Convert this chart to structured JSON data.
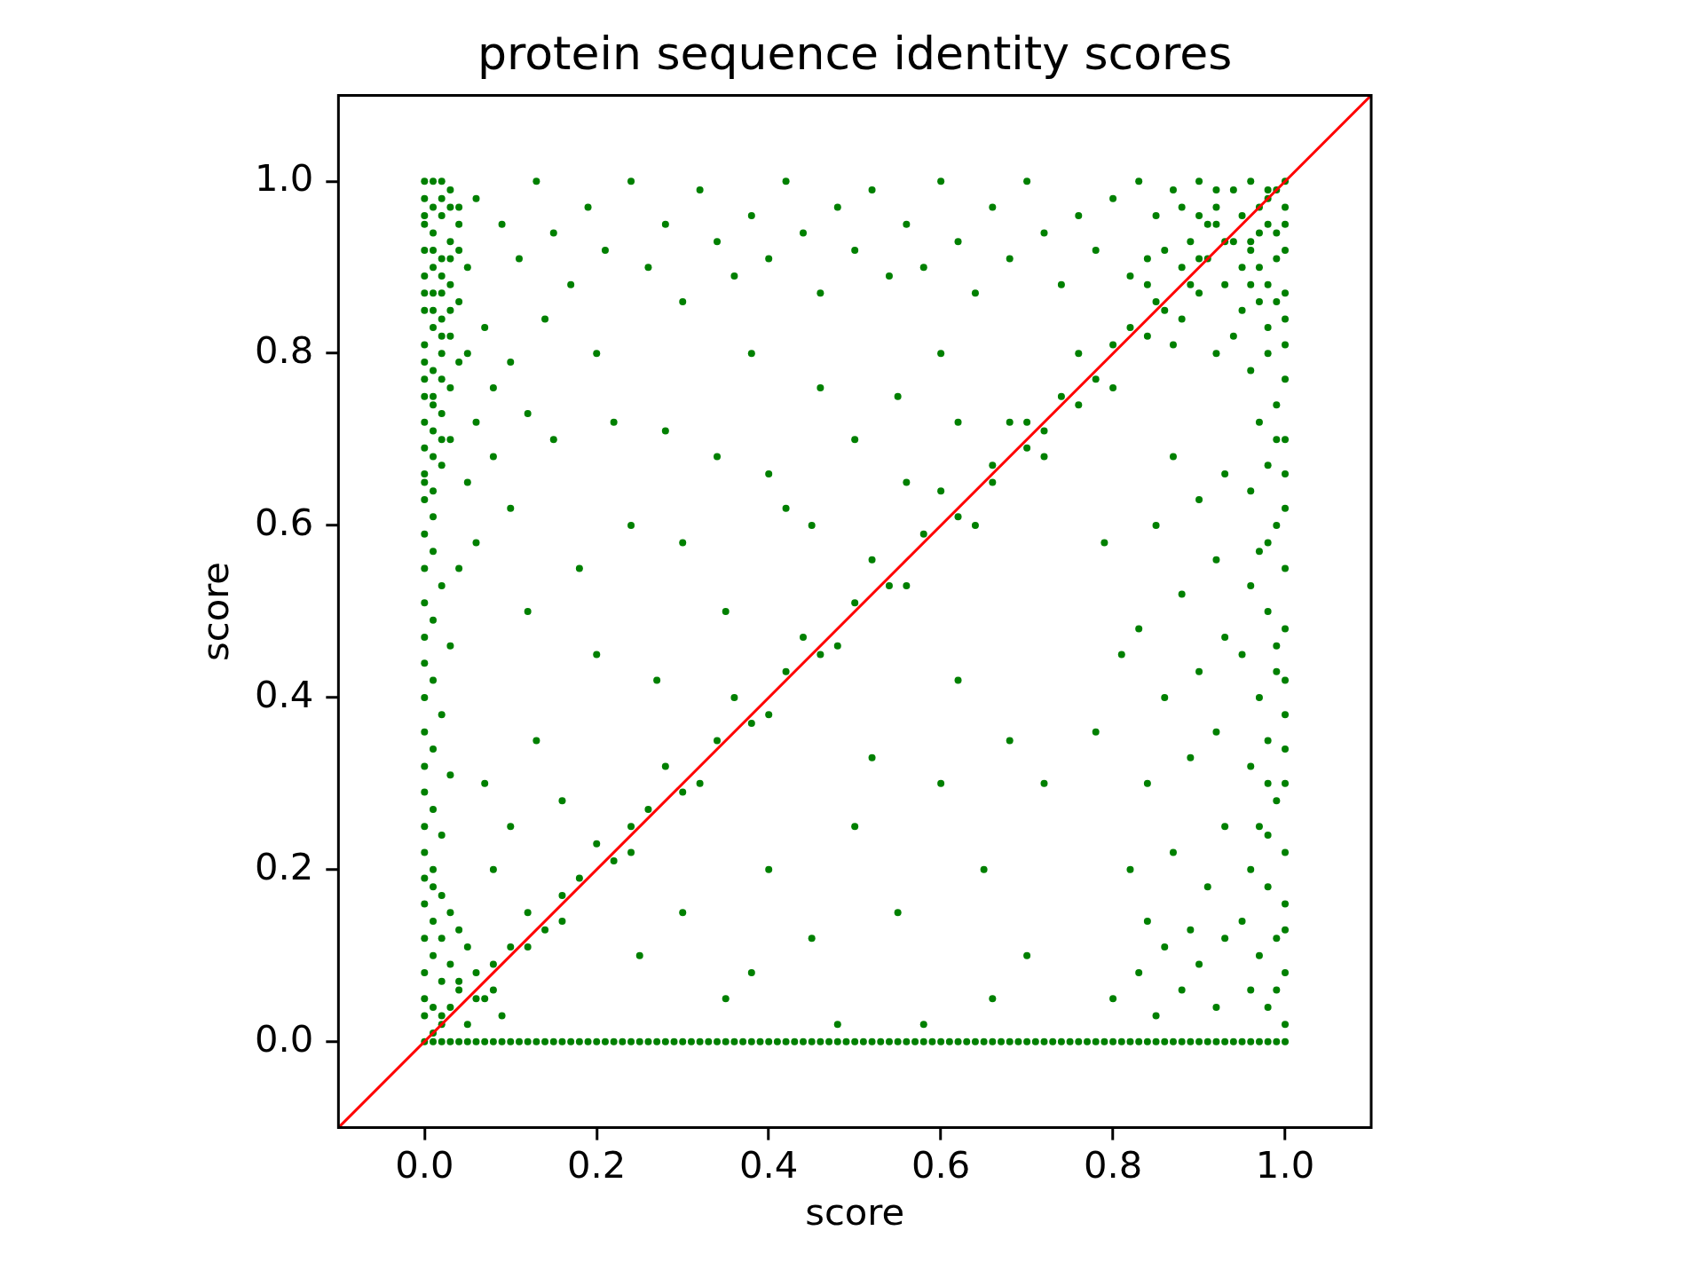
{
  "chart_data": {
    "type": "scatter",
    "title": "protein sequence identity scores",
    "xlabel": "score",
    "ylabel": "score",
    "marker": "circle",
    "xlim": [
      -0.1,
      1.1
    ],
    "ylim": [
      -0.1,
      1.1
    ],
    "xticks": [
      {
        "value": 0,
        "label": "0.0"
      },
      0.2,
      0.4,
      0.6,
      0.8,
      {
        "value": 1,
        "label": "1.0"
      }
    ],
    "yticks": [
      {
        "value": 0,
        "label": "0.0"
      },
      0.2,
      0.4,
      0.6,
      0.8,
      {
        "value": 1,
        "label": "1.0"
      }
    ],
    "series": [
      {
        "type": "scatter",
        "color": "#008000",
        "x": [
          0,
          0.01,
          0.02,
          0.03,
          0,
          0.01,
          0.02,
          0.04,
          0,
          0.01,
          0.03,
          0,
          0.02,
          0.05,
          0.01,
          0,
          0.03,
          0.01,
          0.04,
          0,
          0.02,
          0.01,
          0.03,
          0,
          0.02,
          0.04,
          0.01,
          0,
          0.03,
          0.01,
          0.02,
          0,
          0.01,
          0.03,
          0,
          0.02,
          0,
          0.01,
          0,
          0.01,
          0,
          0.01,
          0,
          0.02,
          0,
          0.01,
          0,
          0.03,
          0,
          0.01,
          0,
          0.02,
          0,
          0.01,
          0,
          0.03,
          0,
          0.01,
          0,
          0.02,
          0,
          0.01,
          0,
          0.01,
          0.02,
          0,
          0.03,
          0.01,
          0.04,
          0,
          0.02,
          0.05,
          0.01,
          0.03,
          0,
          0.06,
          0.02,
          0.04,
          0,
          0.01,
          0.03,
          0.07,
          0,
          0.02,
          0.05,
          0.01,
          0.09,
          0,
          0.01,
          0.02,
          0.03,
          0.04,
          0.05,
          0.06,
          0.07,
          0.08,
          0.09,
          0.1,
          0.11,
          0.12,
          0.13,
          0.14,
          0.15,
          0.16,
          0.17,
          0.18,
          0.19,
          0.2,
          0.21,
          0.22,
          0.23,
          0.24,
          0.25,
          0.26,
          0.27,
          0.28,
          0.29,
          0.3,
          0.31,
          0.32,
          0.33,
          0.34,
          0.35,
          0.36,
          0.37,
          0.38,
          0.39,
          0.4,
          0.41,
          0.42,
          0.43,
          0.44,
          0.45,
          0.46,
          0.47,
          0.48,
          0.49,
          0.5,
          0.51,
          0.52,
          0.53,
          0.54,
          0.55,
          0.56,
          0.57,
          0.58,
          0.59,
          0.6,
          0.61,
          0.62,
          0.63,
          0.64,
          0.65,
          0.66,
          0.67,
          0.68,
          0.69,
          0.7,
          0.71,
          0.72,
          0.73,
          0.74,
          0.75,
          0.76,
          0.77,
          0.78,
          0.79,
          0.8,
          0.81,
          0.82,
          0.83,
          0.84,
          0.85,
          0.86,
          0.87,
          0.88,
          0.89,
          0.9,
          0.91,
          0.92,
          0.93,
          0.94,
          0.95,
          0.96,
          0.97,
          0.98,
          0.99,
          1,
          0.02,
          0.06,
          0.1,
          0.14,
          0.18,
          0.22,
          0.26,
          0.3,
          0.34,
          0.38,
          0.42,
          0.46,
          0.5,
          0.54,
          0.58,
          0.62,
          0.66,
          0.7,
          0.74,
          0.78,
          0.82,
          0.86,
          0.9,
          0.94,
          0.98,
          0.04,
          0.08,
          0.12,
          0.16,
          0.2,
          0.24,
          0.28,
          0.32,
          0.36,
          0.4,
          0.44,
          0.48,
          0.52,
          0.56,
          0.6,
          0.64,
          0.68,
          0.72,
          0.76,
          0.8,
          0.84,
          0.88,
          0.92,
          0.96,
          1,
          0.98,
          0.96,
          1,
          0.97,
          0.99,
          0.95,
          1,
          0.98,
          0.96,
          1,
          0.97,
          0.99,
          1,
          0.96,
          0.98,
          1,
          0.97,
          0.99,
          0.95,
          1,
          0.98,
          0.96,
          1,
          0.97,
          0.99,
          1,
          0.96,
          0.98,
          1,
          0.97,
          0.99,
          1,
          0.96,
          0.98,
          0.8,
          0.83,
          0.85,
          0.87,
          0.89,
          0.9,
          0.92,
          0.94,
          0.96,
          0.98,
          1,
          1,
          0.99,
          0.97,
          0.95,
          0.93,
          0.91,
          0.88,
          0.86,
          0.84,
          0.82,
          0.85,
          0.9,
          0.95,
          1,
          0.98,
          0.94,
          1,
          0.92,
          0.87,
          0.06,
          0.09,
          0.11,
          0.13,
          0.15,
          0.17,
          0.19,
          0.21,
          0.24,
          0.26,
          0.28,
          0.3,
          0.32,
          0.34,
          0.36,
          0.38,
          0.4,
          0.42,
          0.44,
          0.46,
          0.48,
          0.5,
          0.52,
          0.54,
          0.56,
          0.58,
          0.6,
          0.62,
          0.64,
          0.66,
          0.68,
          0.7,
          0.72,
          0.74,
          0.76,
          0.78,
          0.07,
          0.1,
          0.14,
          0.2,
          0.08,
          0.12,
          0.05,
          0.06,
          0.08,
          0.05,
          0.1,
          0.06,
          0.04,
          0.8,
          0.83,
          0.85,
          0.86,
          0.88,
          0.9,
          0.92,
          0.84,
          0.89,
          0.93,
          0.82,
          0.87,
          0.91,
          0.93,
          0.84,
          0.89,
          0.92,
          0.86,
          0.9,
          0.93,
          0.83,
          0.88,
          0.92,
          0.85,
          0.9,
          0.93,
          0.87,
          0.79,
          0.81,
          0.78,
          0.15,
          0.22,
          0.28,
          0.34,
          0.4,
          0.24,
          0.3,
          0.18,
          0.12,
          0.35,
          0.2,
          0.27,
          0.42,
          0.46,
          0.38,
          0.55,
          0.6,
          0.5,
          0.45,
          0.62,
          0.56,
          0.25,
          0.3,
          0.35,
          0.4,
          0.45,
          0.5,
          0.55,
          0.6,
          0.65,
          0.7,
          0.48,
          0.58,
          0.68,
          0.62,
          0.72,
          0.66,
          0.38,
          0.52,
          0.07,
          0.1,
          0.13,
          0.08,
          0.16,
          0.02,
          0.03,
          0,
          0.04,
          0.01,
          0.03,
          0.02,
          0.04,
          0.02,
          0,
          0.01,
          0.03,
          0.02,
          0,
          0.02,
          0.01,
          0,
          0.02,
          0.01,
          0,
          0.88,
          0.9,
          0.92,
          0.93,
          0.95,
          0.96,
          0.97,
          0.98,
          0.99,
          1,
          0.99,
          0.97,
          1,
          0.98,
          0.96,
          1,
          0.99,
          0.97,
          0.91,
          0.89,
          0.99,
          1,
          0.98,
          1,
          0.99,
          0.98,
          1,
          0.99,
          0.98,
          1,
          0.66,
          0.7,
          0.72,
          0.76,
          0.8,
          0.84,
          0.08,
          0.12,
          0.16,
          0.24
        ],
        "values": [
          1,
          1,
          1,
          0.99,
          0.98,
          0.97,
          0.96,
          0.95,
          0.95,
          0.94,
          0.93,
          0.92,
          0.91,
          0.9,
          0.9,
          0.89,
          0.88,
          0.87,
          0.86,
          0.85,
          0.84,
          0.83,
          0.82,
          0.81,
          0.8,
          0.79,
          0.78,
          0.77,
          0.76,
          0.75,
          0.73,
          0.72,
          0.71,
          0.7,
          0.69,
          0.67,
          0.66,
          0.64,
          0.63,
          0.61,
          0.59,
          0.57,
          0.55,
          0.53,
          0.51,
          0.49,
          0.47,
          0.46,
          0.44,
          0.42,
          0.4,
          0.38,
          0.36,
          0.34,
          0.32,
          0.31,
          0.29,
          0.27,
          0.25,
          0.24,
          0.22,
          0.2,
          0.19,
          0.18,
          0.17,
          0.16,
          0.15,
          0.14,
          0.13,
          0.12,
          0.12,
          0.11,
          0.1,
          0.09,
          0.08,
          0.08,
          0.07,
          0.06,
          0.05,
          0.04,
          0.04,
          0.05,
          0.03,
          0.02,
          0.02,
          0.01,
          0.03,
          0,
          0,
          0,
          0,
          0,
          0,
          0,
          0,
          0,
          0,
          0,
          0,
          0,
          0,
          0,
          0,
          0,
          0,
          0,
          0,
          0,
          0,
          0,
          0,
          0,
          0,
          0,
          0,
          0,
          0,
          0,
          0,
          0,
          0,
          0,
          0,
          0,
          0,
          0,
          0,
          0,
          0,
          0,
          0,
          0,
          0,
          0,
          0,
          0,
          0,
          0,
          0,
          0,
          0,
          0,
          0,
          0,
          0,
          0,
          0,
          0,
          0,
          0,
          0,
          0,
          0,
          0,
          0,
          0,
          0,
          0,
          0,
          0,
          0,
          0,
          0,
          0,
          0,
          0,
          0,
          0,
          0,
          0,
          0,
          0,
          0,
          0,
          0,
          0,
          0,
          0,
          0,
          0,
          0,
          0,
          0,
          0,
          0,
          0,
          0,
          0,
          0.03,
          0.05,
          0.11,
          0.13,
          0.19,
          0.21,
          0.27,
          0.29,
          0.35,
          0.37,
          0.43,
          0.45,
          0.51,
          0.53,
          0.59,
          0.61,
          0.67,
          0.69,
          0.75,
          0.77,
          0.83,
          0.85,
          0.91,
          0.93,
          0.99,
          0.07,
          0.06,
          0.15,
          0.14,
          0.23,
          0.22,
          0.32,
          0.3,
          0.4,
          0.38,
          0.47,
          0.46,
          0.56,
          0.53,
          0.64,
          0.6,
          0.72,
          0.68,
          0.8,
          0.76,
          0.88,
          0.84,
          0.95,
          0.92,
          0.02,
          0.04,
          0.06,
          0.08,
          0.1,
          0.12,
          0.14,
          0.16,
          0.18,
          0.2,
          0.22,
          0.25,
          0.28,
          0.3,
          0.32,
          0.35,
          0.38,
          0.4,
          0.43,
          0.45,
          0.48,
          0.5,
          0.53,
          0.55,
          0.57,
          0.6,
          0.62,
          0.64,
          0.67,
          0.7,
          0.72,
          0.74,
          0.77,
          0.78,
          0.8,
          0.98,
          1,
          0.96,
          0.99,
          0.93,
          1,
          0.97,
          0.99,
          1,
          0.98,
          1,
          0.95,
          0.91,
          0.94,
          0.9,
          0.88,
          0.95,
          0.9,
          0.92,
          0.91,
          0.89,
          0.86,
          0.87,
          0.85,
          0.87,
          0.83,
          0.82,
          0.81,
          0.8,
          0.81,
          0.98,
          0.95,
          0.91,
          1,
          0.94,
          0.88,
          0.97,
          0.92,
          1,
          0.9,
          0.95,
          0.86,
          0.99,
          0.93,
          0.89,
          0.96,
          0.91,
          1,
          0.94,
          0.87,
          0.97,
          0.92,
          0.99,
          0.89,
          0.95,
          0.9,
          1,
          0.93,
          0.87,
          0.97,
          0.91,
          1,
          0.94,
          0.88,
          0.96,
          0.92,
          0.83,
          0.79,
          0.84,
          0.8,
          0.76,
          0.73,
          0.8,
          0.72,
          0.68,
          0.65,
          0.62,
          0.58,
          0.55,
          0.05,
          0.08,
          0.03,
          0.11,
          0.06,
          0.09,
          0.04,
          0.14,
          0.13,
          0.12,
          0.2,
          0.22,
          0.18,
          0.25,
          0.3,
          0.33,
          0.36,
          0.4,
          0.43,
          0.47,
          0.48,
          0.52,
          0.56,
          0.6,
          0.63,
          0.66,
          0.68,
          0.58,
          0.45,
          0.36,
          0.7,
          0.72,
          0.71,
          0.68,
          0.66,
          0.6,
          0.58,
          0.55,
          0.5,
          0.5,
          0.45,
          0.42,
          0.62,
          0.76,
          0.8,
          0.75,
          0.8,
          0.7,
          0.6,
          0.72,
          0.65,
          0.1,
          0.15,
          0.05,
          0.2,
          0.12,
          0.25,
          0.15,
          0.3,
          0.2,
          0.1,
          0.02,
          0.02,
          0.35,
          0.42,
          0.3,
          0.05,
          0.08,
          0.33,
          0.3,
          0.25,
          0.35,
          0.2,
          0.28,
          0.98,
          0.97,
          0.96,
          0.97,
          0.92,
          0.91,
          0.89,
          0.92,
          0.87,
          0.87,
          0.85,
          0.85,
          0.82,
          0.79,
          0.77,
          0.74,
          0.75,
          0.7,
          0.68,
          0.65,
          0.97,
          0.96,
          0.99,
          0.93,
          0.96,
          0.93,
          0.97,
          0.95,
          0.99,
          0.97,
          0.94,
          0.9,
          0.92,
          0.88,
          0.88,
          0.84,
          0.86,
          0.86,
          0.91,
          0.88,
          0.06,
          0.13,
          0.24,
          0.34,
          0.46,
          0.58,
          0.66,
          0.7,
          0.3,
          0.42,
          0.65,
          0.72,
          0.71,
          0.74,
          0.81,
          0.82,
          0.09,
          0.11,
          0.17,
          0.25
        ]
      },
      {
        "type": "line",
        "color": "#ff0000",
        "marker": "none",
        "x": [
          -0.1,
          1.1
        ],
        "values": [
          -0.1,
          1.1
        ]
      }
    ]
  }
}
